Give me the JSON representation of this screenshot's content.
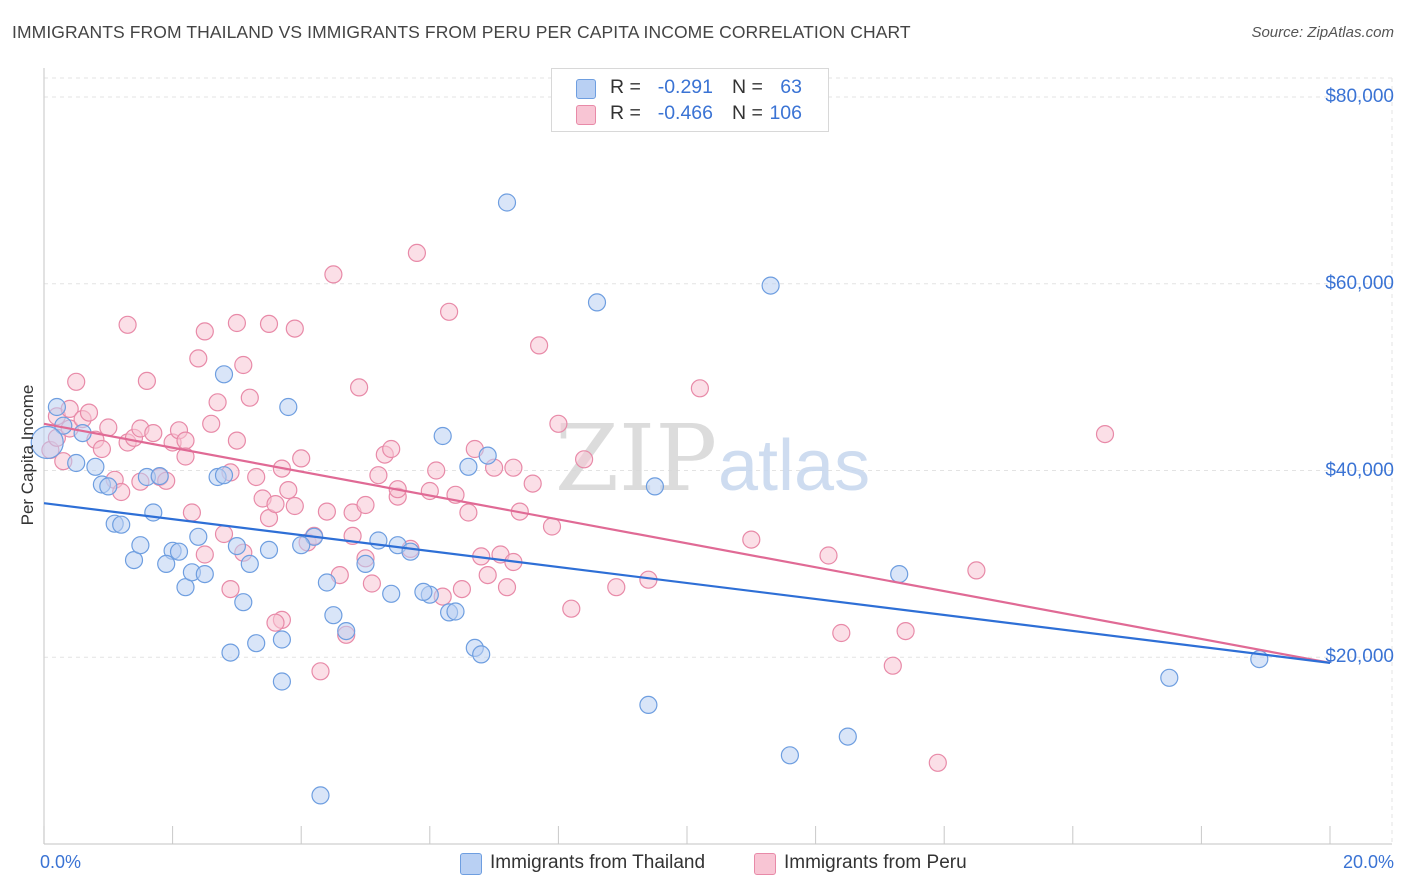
{
  "title": "IMMIGRANTS FROM THAILAND VS IMMIGRANTS FROM PERU PER CAPITA INCOME CORRELATION CHART",
  "source": "Source: ZipAtlas.com",
  "watermark": {
    "zip": "ZIP",
    "atlas": "atlas"
  },
  "legend": {
    "r_label": "R =",
    "n_label": "N =",
    "thailand": {
      "r": "-0.291",
      "n": "63"
    },
    "peru": {
      "r": "-0.466",
      "n": "106"
    }
  },
  "bottom_legend": {
    "thailand": "Immigrants from Thailand",
    "peru": "Immigrants from Peru"
  },
  "colors": {
    "thailand_fill": "#b9d0f3",
    "thailand_stroke": "#6e9ee0",
    "thailand_line": "#2e6fd6",
    "peru_fill": "#f8c5d4",
    "peru_stroke": "#e88aa8",
    "peru_line": "#e06a95",
    "axis_text": "#3a73d4",
    "grid": "#e3e3e3"
  },
  "chart_data": {
    "type": "scatter",
    "title": "IMMIGRANTS FROM THAILAND VS IMMIGRANTS FROM PERU PER CAPITA INCOME CORRELATION CHART",
    "xlabel": "",
    "ylabel": "Per Capita Income",
    "xlim": [
      0,
      20
    ],
    "ylim": [
      0,
      80000
    ],
    "x_tick_labels": [
      "0.0%",
      "20.0%"
    ],
    "y_ticks": [
      20000,
      40000,
      60000,
      80000
    ],
    "y_tick_labels": [
      "$20,000",
      "$40,000",
      "$60,000",
      "$80,000"
    ],
    "grid": true,
    "legend_position": "top-center",
    "series": [
      {
        "name": "Immigrants from Thailand",
        "trend": {
          "x": [
            0,
            20
          ],
          "y": [
            36500,
            19400
          ]
        },
        "points": [
          [
            0.2,
            46800
          ],
          [
            0.3,
            44800
          ],
          [
            0.6,
            44000
          ],
          [
            0.5,
            40800
          ],
          [
            0.8,
            40400
          ],
          [
            0.9,
            38500
          ],
          [
            1.1,
            34300
          ],
          [
            1.2,
            34200
          ],
          [
            1.4,
            30400
          ],
          [
            1.5,
            32000
          ],
          [
            1.6,
            39300
          ],
          [
            1.7,
            35500
          ],
          [
            1.8,
            39400
          ],
          [
            2.0,
            31400
          ],
          [
            2.1,
            31300
          ],
          [
            2.2,
            27500
          ],
          [
            2.3,
            29100
          ],
          [
            2.4,
            32900
          ],
          [
            2.5,
            28900
          ],
          [
            2.7,
            39300
          ],
          [
            2.8,
            50300
          ],
          [
            2.9,
            20500
          ],
          [
            3.0,
            31900
          ],
          [
            3.1,
            25900
          ],
          [
            3.2,
            30000
          ],
          [
            3.3,
            21500
          ],
          [
            3.5,
            31500
          ],
          [
            3.7,
            21900
          ],
          [
            3.7,
            17400
          ],
          [
            3.8,
            46800
          ],
          [
            4.2,
            32900
          ],
          [
            4.4,
            28000
          ],
          [
            4.3,
            5200
          ],
          [
            4.5,
            24500
          ],
          [
            4.7,
            22800
          ],
          [
            5.0,
            30000
          ],
          [
            5.2,
            32500
          ],
          [
            5.4,
            26800
          ],
          [
            5.5,
            32000
          ],
          [
            5.7,
            31300
          ],
          [
            6.0,
            26700
          ],
          [
            6.2,
            43700
          ],
          [
            6.3,
            24800
          ],
          [
            6.4,
            24900
          ],
          [
            6.6,
            40400
          ],
          [
            6.7,
            21000
          ],
          [
            6.8,
            20300
          ],
          [
            6.9,
            41600
          ],
          [
            7.2,
            68700
          ],
          [
            8.6,
            58000
          ],
          [
            9.4,
            14900
          ],
          [
            9.5,
            38300
          ],
          [
            11.3,
            59800
          ],
          [
            11.6,
            9500
          ],
          [
            12.5,
            11500
          ],
          [
            13.3,
            28900
          ],
          [
            17.5,
            17800
          ],
          [
            18.9,
            19800
          ],
          [
            1.0,
            38300
          ],
          [
            2.8,
            39500
          ],
          [
            5.9,
            27000
          ],
          [
            4.0,
            32000
          ],
          [
            1.9,
            30000
          ]
        ]
      },
      {
        "name": "Immigrants from Peru",
        "trend": {
          "x": [
            0,
            20
          ],
          "y": [
            45000,
            19400
          ]
        },
        "points": [
          [
            0.1,
            42200
          ],
          [
            0.2,
            45800
          ],
          [
            0.2,
            43500
          ],
          [
            0.4,
            46600
          ],
          [
            0.4,
            44500
          ],
          [
            0.5,
            49500
          ],
          [
            0.6,
            45500
          ],
          [
            0.7,
            46200
          ],
          [
            0.8,
            43300
          ],
          [
            0.9,
            42300
          ],
          [
            1.0,
            44600
          ],
          [
            1.1,
            39000
          ],
          [
            1.2,
            37700
          ],
          [
            1.3,
            55600
          ],
          [
            1.3,
            43000
          ],
          [
            1.4,
            43500
          ],
          [
            1.5,
            44500
          ],
          [
            1.6,
            49600
          ],
          [
            1.7,
            44000
          ],
          [
            1.8,
            39300
          ],
          [
            1.9,
            38900
          ],
          [
            2.0,
            43000
          ],
          [
            2.1,
            44300
          ],
          [
            2.2,
            43200
          ],
          [
            2.3,
            35500
          ],
          [
            2.4,
            52000
          ],
          [
            2.5,
            31000
          ],
          [
            2.5,
            54900
          ],
          [
            2.6,
            45000
          ],
          [
            2.7,
            47300
          ],
          [
            2.8,
            33200
          ],
          [
            2.9,
            27300
          ],
          [
            3.0,
            43200
          ],
          [
            3.0,
            55800
          ],
          [
            3.1,
            51300
          ],
          [
            3.1,
            31200
          ],
          [
            3.2,
            47800
          ],
          [
            3.3,
            39300
          ],
          [
            3.4,
            37000
          ],
          [
            3.5,
            55700
          ],
          [
            3.5,
            34900
          ],
          [
            3.6,
            36400
          ],
          [
            3.7,
            40200
          ],
          [
            3.7,
            24000
          ],
          [
            3.8,
            37900
          ],
          [
            3.9,
            55200
          ],
          [
            4.0,
            41300
          ],
          [
            4.1,
            32300
          ],
          [
            4.2,
            33000
          ],
          [
            4.3,
            18500
          ],
          [
            4.4,
            35600
          ],
          [
            4.5,
            61000
          ],
          [
            4.6,
            28800
          ],
          [
            4.7,
            22400
          ],
          [
            4.8,
            35500
          ],
          [
            4.9,
            48900
          ],
          [
            5.0,
            36300
          ],
          [
            5.1,
            27900
          ],
          [
            5.2,
            39500
          ],
          [
            5.3,
            41700
          ],
          [
            5.4,
            42300
          ],
          [
            5.5,
            37200
          ],
          [
            5.7,
            31600
          ],
          [
            5.8,
            63300
          ],
          [
            6.0,
            37800
          ],
          [
            6.1,
            40000
          ],
          [
            6.2,
            26500
          ],
          [
            6.3,
            57000
          ],
          [
            6.4,
            37400
          ],
          [
            6.5,
            27300
          ],
          [
            6.7,
            42300
          ],
          [
            6.9,
            28800
          ],
          [
            7.0,
            40300
          ],
          [
            7.1,
            31000
          ],
          [
            7.2,
            27500
          ],
          [
            7.3,
            40300
          ],
          [
            7.4,
            35600
          ],
          [
            7.6,
            38600
          ],
          [
            7.7,
            53400
          ],
          [
            7.9,
            34000
          ],
          [
            8.0,
            45000
          ],
          [
            8.2,
            25200
          ],
          [
            8.4,
            41200
          ],
          [
            8.9,
            27500
          ],
          [
            9.4,
            28300
          ],
          [
            10.2,
            48800
          ],
          [
            11.0,
            32600
          ],
          [
            12.2,
            30900
          ],
          [
            12.4,
            22600
          ],
          [
            13.2,
            19100
          ],
          [
            13.4,
            22800
          ],
          [
            13.9,
            8700
          ],
          [
            14.5,
            29300
          ],
          [
            16.5,
            43900
          ],
          [
            0.3,
            41000
          ],
          [
            1.5,
            38800
          ],
          [
            2.2,
            41500
          ],
          [
            3.9,
            36200
          ],
          [
            4.8,
            33000
          ],
          [
            5.5,
            38000
          ],
          [
            6.6,
            35500
          ],
          [
            7.3,
            30200
          ],
          [
            3.6,
            23700
          ],
          [
            5.0,
            30600
          ],
          [
            2.9,
            39800
          ],
          [
            6.8,
            30800
          ]
        ]
      }
    ]
  }
}
